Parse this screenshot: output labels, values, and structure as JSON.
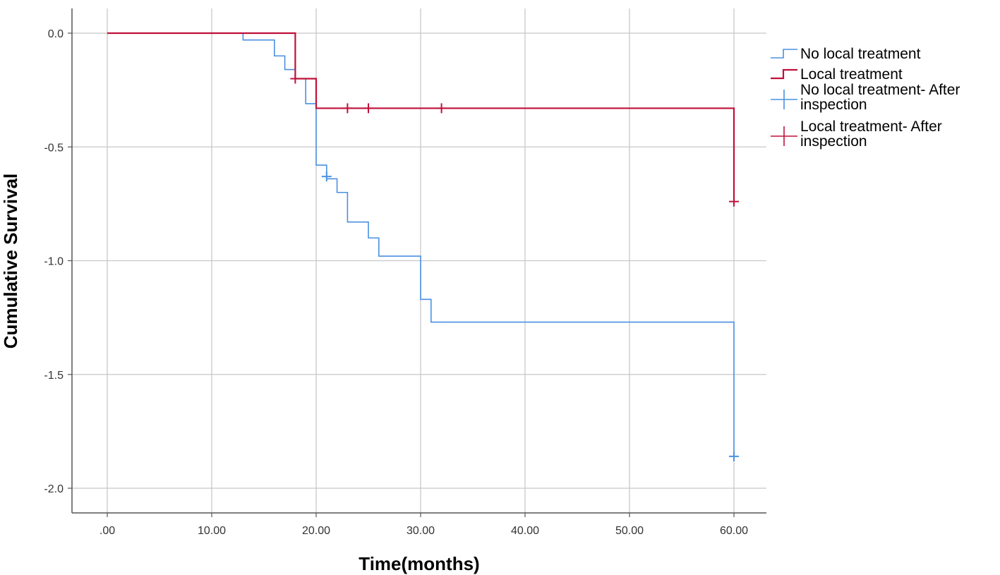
{
  "chart_data": {
    "type": "line",
    "xlabel": "Time(months)",
    "ylabel": "Cumulative Survival",
    "xlim": [
      0,
      60
    ],
    "ylim": [
      -2.0,
      0.0
    ],
    "x_ticks": [
      ".00",
      "10.00",
      "20.00",
      "30.00",
      "40.00",
      "50.00",
      "60.00"
    ],
    "x_tick_values": [
      0,
      10,
      20,
      30,
      40,
      50,
      60
    ],
    "y_ticks": [
      "0.0",
      "-0.5",
      "-1.0",
      "-1.5",
      "-2.0"
    ],
    "y_tick_values": [
      0,
      -0.5,
      -1.0,
      -1.5,
      -2.0
    ],
    "grid": true,
    "legend_position": "right",
    "colors": {
      "no_local": "#4a90e2",
      "local": "#c0103a",
      "grid": "#c8c8c8",
      "axis": "#555555"
    },
    "series": [
      {
        "name": "No local treatment",
        "color_key": "no_local",
        "steps": [
          [
            0,
            0.0
          ],
          [
            13,
            -0.03
          ],
          [
            16,
            -0.1
          ],
          [
            17,
            -0.16
          ],
          [
            18,
            -0.2
          ],
          [
            19,
            -0.31
          ],
          [
            20,
            -0.58
          ],
          [
            21,
            -0.64
          ],
          [
            22,
            -0.7
          ],
          [
            23,
            -0.83
          ],
          [
            25,
            -0.9
          ],
          [
            26,
            -0.98
          ],
          [
            30,
            -1.17
          ],
          [
            31,
            -1.27
          ],
          [
            60,
            -1.86
          ]
        ],
        "end_x": 60,
        "censored": [
          [
            21,
            -0.63
          ],
          [
            60,
            -1.86
          ]
        ]
      },
      {
        "name": "Local treatment",
        "color_key": "local",
        "steps": [
          [
            0,
            0.0
          ],
          [
            18,
            -0.2
          ],
          [
            20,
            -0.33
          ],
          [
            60,
            -0.74
          ]
        ],
        "end_x": 60,
        "censored": [
          [
            18,
            -0.2
          ],
          [
            23,
            -0.33
          ],
          [
            25,
            -0.33
          ],
          [
            32,
            -0.33
          ],
          [
            60,
            -0.74
          ]
        ]
      }
    ],
    "legend": [
      {
        "label": "No local treatment",
        "style": "step",
        "color_key": "no_local"
      },
      {
        "label": "Local treatment",
        "style": "step",
        "color_key": "local"
      },
      {
        "label": "No local treatment- After inspection",
        "lines": [
          "No local treatment- After",
          "inspection"
        ],
        "style": "cross",
        "color_key": "no_local"
      },
      {
        "label": "Local treatment- After inspection",
        "lines": [
          "Local treatment- After",
          "inspection"
        ],
        "style": "cross",
        "color_key": "local"
      }
    ]
  }
}
